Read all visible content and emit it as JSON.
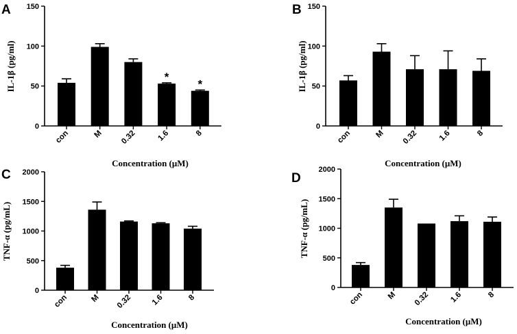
{
  "chart_data": [
    {
      "panel": "A",
      "type": "bar",
      "categories": [
        "con",
        "M",
        "0.32",
        "1.6",
        "8"
      ],
      "values": [
        54,
        99,
        80,
        53,
        44
      ],
      "errors": [
        5,
        4,
        4,
        1,
        1
      ],
      "annotations": [
        "",
        "",
        "",
        "*",
        "*"
      ],
      "ylabel": "IL-1β (pg/ml)",
      "xlabel": "Concentration (μM)",
      "ylim": [
        0,
        150
      ],
      "yticks": [
        0,
        50,
        100,
        150
      ],
      "color": "#000000"
    },
    {
      "panel": "B",
      "type": "bar",
      "categories": [
        "con",
        "M",
        "0.32",
        "1.6",
        "8"
      ],
      "values": [
        57,
        93,
        71,
        71,
        69
      ],
      "errors": [
        6,
        10,
        17,
        23,
        15
      ],
      "annotations": [
        "",
        "",
        "",
        "",
        ""
      ],
      "ylabel": "IL-1β (pg/ml)",
      "xlabel": "Concentration (μM)",
      "ylim": [
        0,
        150
      ],
      "yticks": [
        0,
        50,
        100,
        150
      ],
      "color": "#000000"
    },
    {
      "panel": "C",
      "type": "bar",
      "categories": [
        "con",
        "M",
        "0.32",
        "1.6",
        "8"
      ],
      "values": [
        380,
        1360,
        1160,
        1130,
        1040
      ],
      "errors": [
        40,
        130,
        10,
        10,
        40
      ],
      "annotations": [
        "",
        "",
        "",
        "",
        ""
      ],
      "ylabel": "TNF-α (pg/mL)",
      "xlabel": "Concentration (μM)",
      "ylim": [
        0,
        2000
      ],
      "yticks": [
        0,
        500,
        1000,
        1500,
        2000
      ],
      "color": "#000000"
    },
    {
      "panel": "D",
      "type": "bar",
      "categories": [
        "con",
        "M",
        "0.32",
        "1.6",
        "8"
      ],
      "values": [
        380,
        1350,
        1080,
        1120,
        1110
      ],
      "errors": [
        40,
        140,
        0,
        90,
        80
      ],
      "annotations": [
        "",
        "",
        "",
        "",
        ""
      ],
      "ylabel": "TNF-α (pg/mL)",
      "xlabel": "Concentration (μM)",
      "ylim": [
        0,
        2000
      ],
      "yticks": [
        0,
        500,
        1000,
        1500,
        2000
      ],
      "color": "#000000"
    }
  ]
}
